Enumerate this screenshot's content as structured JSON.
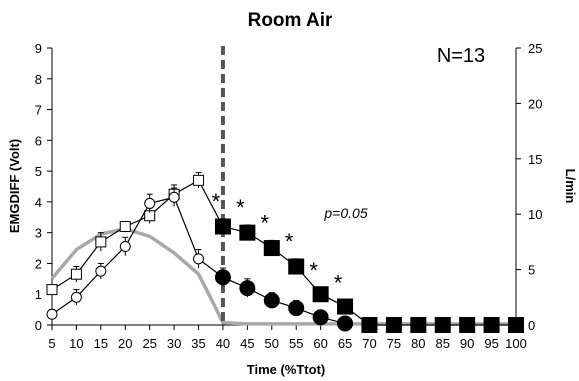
{
  "chart_data": {
    "type": "line",
    "title": "Room Air",
    "annotation": "N=13",
    "p_value_label": "p=0.05",
    "xlabel": "Time (%Ttot)",
    "ylabel_left": "EMGDIFF (Volt)",
    "ylabel_right": "L/min",
    "x_ticks": [
      5,
      10,
      15,
      20,
      25,
      30,
      35,
      40,
      45,
      50,
      55,
      60,
      65,
      70,
      75,
      80,
      85,
      90,
      95,
      100
    ],
    "ylim_left": [
      0,
      9
    ],
    "ylim_right": [
      0,
      25
    ],
    "y_ticks_left": [
      0,
      1,
      2,
      3,
      4,
      5,
      6,
      7,
      8,
      9
    ],
    "y_ticks_right": [
      0,
      5,
      10,
      15,
      20,
      25
    ],
    "vertical_line_x": 40,
    "grid": false,
    "significance_marker": "*",
    "significance_x": [
      40,
      45,
      50,
      55,
      60,
      65
    ],
    "series": [
      {
        "marker": "square",
        "x": [
          5,
          10,
          15,
          20,
          25,
          30,
          35,
          40,
          45,
          50,
          55,
          60,
          65,
          70,
          75,
          80,
          85,
          90,
          95,
          100
        ],
        "y": [
          1.15,
          1.65,
          2.7,
          3.2,
          3.55,
          4.25,
          4.7,
          3.2,
          3.0,
          2.5,
          1.9,
          1.0,
          0.6,
          0.0,
          0.0,
          0.0,
          0.0,
          0.0,
          0.0,
          0.0
        ],
        "err": [
          0.15,
          0.25,
          0.3,
          0.15,
          0.25,
          0.3,
          0.25,
          0.25,
          0.25,
          0.25,
          0.25,
          0.2,
          0.2,
          0.1,
          0.1,
          0.1,
          0.1,
          0.1,
          0.1,
          0.1
        ]
      },
      {
        "marker": "circle",
        "x": [
          5,
          10,
          15,
          20,
          25,
          30,
          35,
          40,
          45,
          50,
          55,
          60,
          65
        ],
        "y": [
          0.35,
          0.9,
          1.75,
          2.55,
          3.95,
          4.15,
          2.15,
          1.55,
          1.2,
          0.8,
          0.55,
          0.25,
          0.05
        ],
        "err": [
          0.15,
          0.25,
          0.25,
          0.3,
          0.3,
          0.3,
          0.3,
          0.3,
          0.3,
          0.25,
          0.25,
          0.15,
          0.1
        ]
      },
      {
        "axis": "right",
        "style": "gray-line",
        "x": [
          5,
          10,
          15,
          20,
          25,
          30,
          35,
          38,
          40,
          45,
          50,
          55,
          60,
          65,
          70,
          75,
          80,
          85,
          90,
          95,
          100
        ],
        "y": [
          4.2,
          6.8,
          8.2,
          8.7,
          8.0,
          6.5,
          4.6,
          2.0,
          0.2,
          0.1,
          0.1,
          0.1,
          0.1,
          0.1,
          0.1,
          0.1,
          0.1,
          0.1,
          0.1,
          0.1,
          0.1
        ]
      }
    ]
  }
}
